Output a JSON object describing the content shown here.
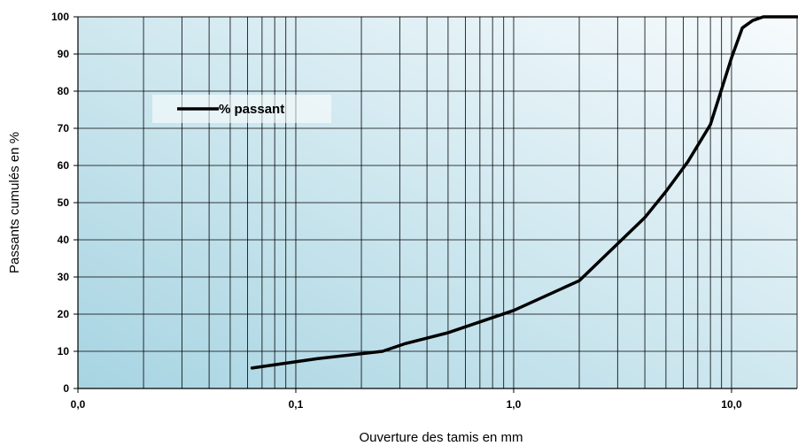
{
  "chart_data": {
    "type": "line",
    "xlabel": "Ouverture des tamis en mm",
    "ylabel": "Passants cumulés en %",
    "x_scale": "log",
    "xlim": [
      0.01,
      20
    ],
    "ylim": [
      0,
      100
    ],
    "x_tick_labels": [
      {
        "value": 0.01,
        "label": "0,0"
      },
      {
        "value": 0.1,
        "label": "0,1"
      },
      {
        "value": 1,
        "label": "1,0"
      },
      {
        "value": 10,
        "label": "10,0"
      }
    ],
    "y_ticks": [
      0,
      10,
      20,
      30,
      40,
      50,
      60,
      70,
      80,
      90,
      100
    ],
    "grid": true,
    "legend_position": "top-left",
    "series": [
      {
        "name": "% passant",
        "color": "#000000",
        "x": [
          0.063,
          0.125,
          0.25,
          0.315,
          0.5,
          1,
          2,
          4,
          5,
          6.3,
          8,
          10,
          11.2,
          12.5,
          14,
          20
        ],
        "y": [
          5.5,
          8,
          10,
          12,
          15,
          21,
          29,
          46,
          53,
          61,
          71,
          89,
          97,
          99,
          100,
          100
        ]
      }
    ]
  },
  "colors": {
    "plot_gradient_start": "#a7d4e2",
    "plot_gradient_end": "#f7fbfd",
    "grid": "#000000",
    "line": "#000000"
  }
}
